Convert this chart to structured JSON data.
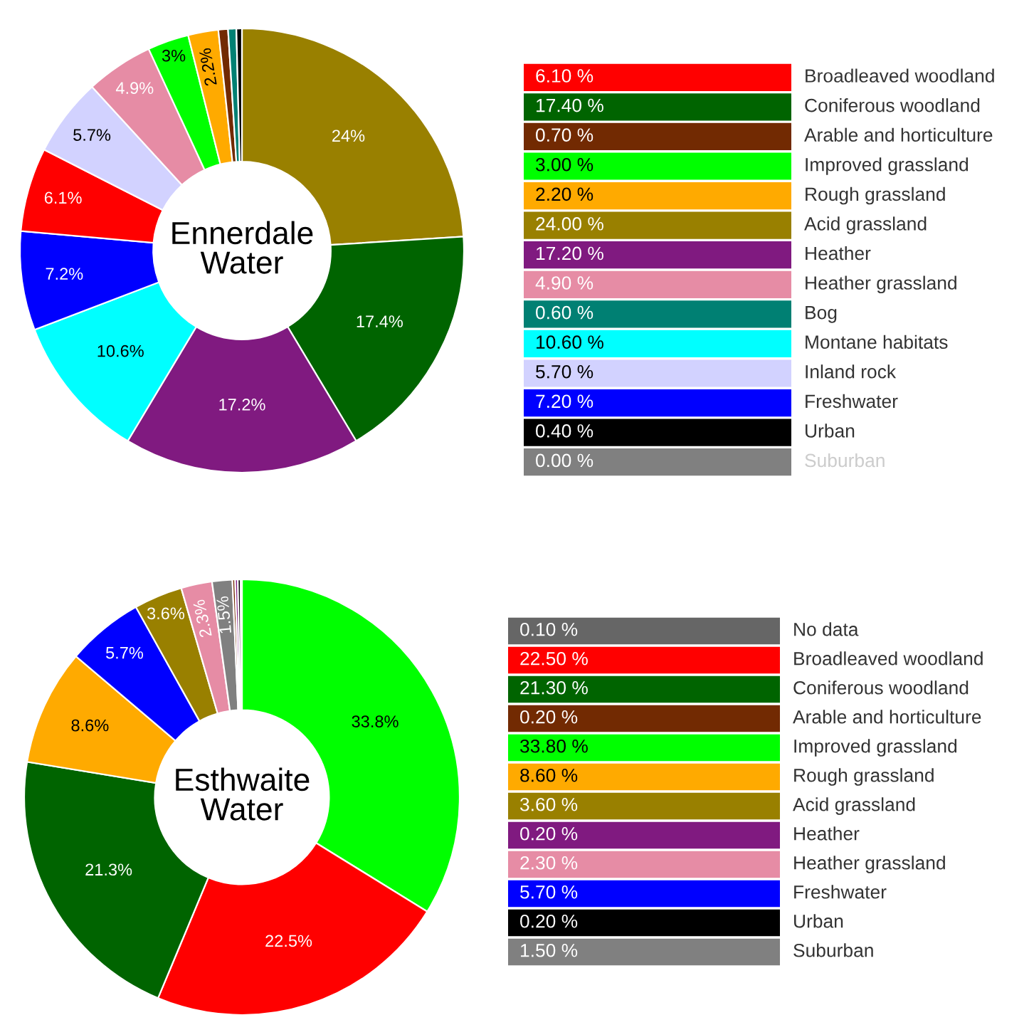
{
  "chart_data": [
    {
      "type": "donut",
      "title": "Ennerdale Water",
      "categories": [
        null,
        null,
        null,
        null,
        null,
        null,
        null,
        null,
        null,
        null,
        null,
        null,
        null
      ],
      "values": [
        24,
        17.4,
        17.2,
        10.6,
        7.2,
        6.1,
        5.7,
        4.9,
        3,
        2.2,
        0.7,
        0.6,
        0.4
      ],
      "colors": [
        "#998000",
        "#006400",
        "#801a80",
        "#00ffff",
        "#0000ff",
        "#ff0000",
        "#d2d2ff",
        "#e68ca5",
        "#00ff00",
        "#ffaa00",
        "#722a02",
        "#008073",
        "#000000"
      ],
      "value_labels": [
        "24%",
        "17.4%",
        "17.2%",
        "10.6%",
        "7.2%",
        "6.1%",
        "5.7%",
        "4.9%",
        "3%",
        "2.2%",
        null,
        null,
        null
      ]
    },
    {
      "type": "other",
      "categories": [
        "Broadleaved woodland",
        "Coniferous woodland",
        "Arable and horticulture",
        "Improved grassland",
        "Rough grassland",
        "Acid grassland",
        "Heather",
        "Heather grassland",
        "Bog",
        "Montane habitats",
        "Inland rock",
        "Freshwater",
        "Urban",
        "Suburban"
      ],
      "values": [
        6.1,
        17.4,
        0.7,
        3,
        2.2,
        24,
        17.2,
        4.9,
        0.6,
        10.6,
        5.7,
        7.2,
        0.4,
        0
      ],
      "colors": [
        "#ff0000",
        "#006400",
        "#722a02",
        "#00ff00",
        "#ffaa00",
        "#998000",
        "#801a80",
        "#e68ca5",
        "#008073",
        "#00ffff",
        "#d2d2ff",
        "#0000ff",
        "#000000",
        "#808080"
      ],
      "value_labels": [
        "6.10 %",
        "17.40 %",
        "0.70 %",
        "3.00 %",
        "2.20 %",
        "24.00 %",
        "17.20 %",
        "4.90 %",
        "0.60 %",
        "10.60 %",
        "5.70 %",
        "7.20 %",
        "0.40 %",
        "0.00 %"
      ]
    },
    {
      "type": "donut",
      "title": "Esthwaite Water",
      "categories": [
        null,
        null,
        null,
        null,
        null,
        null,
        null,
        null,
        null,
        null,
        null,
        null
      ],
      "values": [
        33.8,
        22.5,
        21.3,
        8.6,
        5.7,
        3.6,
        2.3,
        1.5,
        0.2,
        0.2,
        0.2,
        0.1
      ],
      "colors": [
        "#00ff00",
        "#ff0000",
        "#006400",
        "#ffaa00",
        "#0000ff",
        "#998000",
        "#e68ca5",
        "#808080",
        "#722a02",
        "#801a80",
        "#000000",
        "#666666"
      ],
      "value_labels": [
        "33.8%",
        "22.5%",
        "21.3%",
        "8.6%",
        "5.7%",
        "3.6%",
        "2.3%",
        "1.5%",
        null,
        null,
        null,
        null
      ]
    },
    {
      "type": "other",
      "categories": [
        "No data",
        "Broadleaved woodland",
        "Coniferous woodland",
        "Arable and horticulture",
        "Improved grassland",
        "Rough grassland",
        "Acid grassland",
        "Heather",
        "Heather grassland",
        "Freshwater",
        "Urban",
        "Suburban"
      ],
      "values": [
        0.1,
        22.5,
        21.3,
        0.2,
        33.8,
        8.6,
        3.6,
        0.2,
        2.3,
        5.7,
        0.2,
        1.5
      ],
      "colors": [
        "#666666",
        "#ff0000",
        "#006400",
        "#722a02",
        "#00ff00",
        "#ffaa00",
        "#998000",
        "#801a80",
        "#e68ca5",
        "#0000ff",
        "#000000",
        "#808080"
      ],
      "value_labels": [
        "0.10 %",
        "22.50 %",
        "21.30 %",
        "0.20 %",
        "33.80 %",
        "8.60 %",
        "3.60 %",
        "0.20 %",
        "2.30 %",
        "5.70 %",
        "0.20 %",
        "1.50 %"
      ]
    }
  ]
}
